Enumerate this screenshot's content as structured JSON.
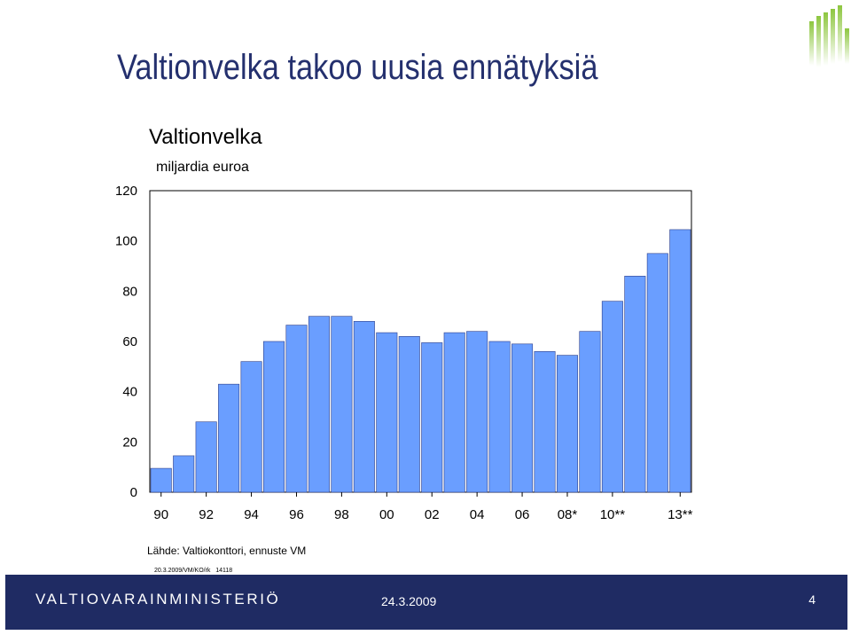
{
  "slide": {
    "title": "Valtionvelka takoo uusia ennätyksiä"
  },
  "chart_data": {
    "type": "bar",
    "title": "Valtionvelka",
    "subtitle": "miljardia euroa",
    "xlabel": "",
    "ylabel": "",
    "ylim": [
      0,
      120
    ],
    "yticks": [
      0,
      20,
      40,
      60,
      80,
      100,
      120
    ],
    "grid": false,
    "legend": "none",
    "categories": [
      "90",
      "91",
      "92",
      "93",
      "94",
      "95",
      "96",
      "97",
      "98",
      "99",
      "00",
      "01",
      "02",
      "03",
      "04",
      "05",
      "06",
      "07",
      "08*",
      "09",
      "10**",
      "11",
      "12",
      "13**"
    ],
    "xtick_labels": [
      "90",
      "92",
      "94",
      "96",
      "98",
      "00",
      "02",
      "04",
      "06",
      "08*",
      "10**",
      "13**"
    ],
    "values": [
      9.5,
      14.5,
      28,
      43,
      52,
      60,
      66.5,
      70,
      70,
      68,
      63.5,
      62,
      59.5,
      63.5,
      64,
      60,
      59,
      56,
      54.5,
      64,
      76,
      86,
      95,
      104.5
    ],
    "bar_color": "#6a9eff",
    "source": "Lähde: Valtiokonttori, ennuste VM",
    "doc_ref": "20.3.2009/VM/KO/rk   14118"
  },
  "footer": {
    "ministry": "VALTIOVARAINMINISTERIÖ",
    "date": "24.3.2009",
    "page": "4",
    "bg_color": "#1f2b63"
  }
}
